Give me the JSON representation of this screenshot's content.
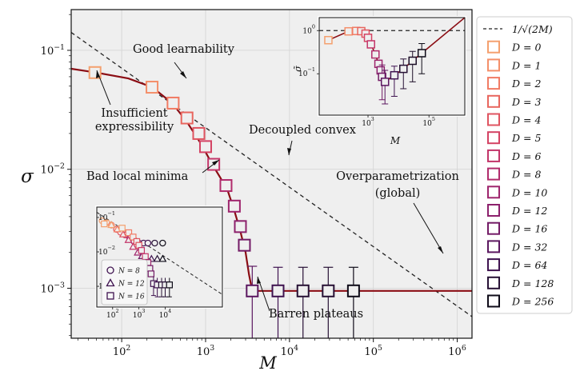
{
  "chart_data": [
    {
      "type": "scatter",
      "xlabel": "M",
      "ylabel": "σ",
      "xscale": "log",
      "yscale": "log",
      "xlim": [
        25,
        1500000
      ],
      "ylim": [
        0.00038,
        0.22
      ],
      "x_ticks": [
        {
          "v": 100,
          "label": "10^2"
        },
        {
          "v": 1000,
          "label": "10^3"
        },
        {
          "v": 10000,
          "label": "10^4"
        },
        {
          "v": 100000,
          "label": "10^5"
        },
        {
          "v": 1000000,
          "label": "10^6"
        }
      ],
      "y_ticks": [
        {
          "v": 0.001,
          "label": "10^-3"
        },
        {
          "v": 0.01,
          "label": "10^-2"
        },
        {
          "v": 0.1,
          "label": "10^-1"
        }
      ],
      "grid": true,
      "reference_line": {
        "name": "1/√(2M)",
        "style": "dashed",
        "color": "#222222"
      },
      "fit_curve": {
        "color": "#8b0d14",
        "points": [
          [
            25,
            0.07
          ],
          [
            50,
            0.065
          ],
          [
            120,
            0.058
          ],
          [
            230,
            0.049
          ],
          [
            400,
            0.036
          ],
          [
            600,
            0.025
          ],
          [
            900,
            0.016
          ],
          [
            1200,
            0.011
          ],
          [
            1500,
            0.0085
          ],
          [
            1850,
            0.0065
          ],
          [
            2200,
            0.0045
          ],
          [
            2600,
            0.003
          ],
          [
            3000,
            0.002
          ],
          [
            3300,
            0.0013
          ],
          [
            3600,
            0.00095
          ],
          [
            5000,
            0.00095
          ],
          [
            1500000,
            0.00095
          ]
        ]
      },
      "series": [
        {
          "name": "D=0",
          "color": "#f4a06e",
          "points": [
            {
              "M": 48,
              "sigma": 0.065
            }
          ]
        },
        {
          "name": "D=1",
          "color": "#f48f6a",
          "points": [
            {
              "M": 230,
              "sigma": 0.049
            }
          ]
        },
        {
          "name": "D=2",
          "color": "#f17b64",
          "points": [
            {
              "M": 410,
              "sigma": 0.036
            }
          ]
        },
        {
          "name": "D=3",
          "color": "#e8665e",
          "points": [
            {
              "M": 600,
              "sigma": 0.027
            }
          ]
        },
        {
          "name": "D=4",
          "color": "#df5460",
          "points": [
            {
              "M": 830,
              "sigma": 0.02
            }
          ]
        },
        {
          "name": "D=5",
          "color": "#d44263",
          "points": [
            {
              "M": 1000,
              "sigma": 0.0155
            }
          ]
        },
        {
          "name": "D=6",
          "color": "#c33569",
          "points": [
            {
              "M": 1250,
              "sigma": 0.011
            }
          ]
        },
        {
          "name": "D=8",
          "color": "#b12c6c",
          "points": [
            {
              "M": 1750,
              "sigma": 0.0073
            }
          ]
        },
        {
          "name": "D=10",
          "color": "#9e256d",
          "points": [
            {
              "M": 2200,
              "sigma": 0.0049
            }
          ]
        },
        {
          "name": "D=12",
          "color": "#8c206c",
          "points": [
            {
              "M": 2600,
              "sigma": 0.0033
            }
          ]
        },
        {
          "name": "D=16",
          "color": "#731b66",
          "points": [
            {
              "M": 2900,
              "sigma": 0.0023
            }
          ]
        },
        {
          "name": "D=32",
          "color": "#5b1760",
          "points": [
            {
              "M": 3600,
              "sigma": 0.00095,
              "err_lo": 0.00026,
              "err_hi": 0.00153
            }
          ]
        },
        {
          "name": "D=64",
          "color": "#3f1350",
          "points": [
            {
              "M": 7300,
              "sigma": 0.00095,
              "err_lo": 0.00032,
              "err_hi": 0.0015
            }
          ]
        },
        {
          "name": "D=128",
          "color": "#271135",
          "points": [
            {
              "M": 14500,
              "sigma": 0.00095,
              "err_lo": 0.00032,
              "err_hi": 0.0015
            },
            {
              "M": 29000,
              "sigma": 0.00095,
              "err_lo": 0.00032,
              "err_hi": 0.0015
            }
          ]
        },
        {
          "name": "D=256",
          "color": "#0e0b18",
          "points": [
            {
              "M": 58000,
              "sigma": 0.00095,
              "err_lo": 0.00032,
              "err_hi": 0.0015
            }
          ]
        }
      ],
      "legend": {
        "placement": "outside-right",
        "entries": [
          "1/√(2M)",
          "D=0",
          "D=1",
          "D=2",
          "D=3",
          "D=4",
          "D=5",
          "D=6",
          "D=8",
          "D=10",
          "D=12",
          "D=16",
          "D=32",
          "D=64",
          "D=128",
          "D=256"
        ]
      },
      "annotations": [
        "Good learnability",
        "Insufficient expressibility",
        "Decoupled convex",
        "Bad local minima",
        "Overparametrization (global)",
        "Barren plateaus"
      ]
    },
    {
      "type": "scatter",
      "name": "top-right inset",
      "xlabel": "M",
      "ylabel": "σ̃",
      "xscale": "log",
      "yscale": "log",
      "xlim": [
        25,
        1500000
      ],
      "ylim": [
        0.011,
        2
      ],
      "x_ticks": [
        {
          "v": 1000,
          "label": "10^3"
        },
        {
          "v": 100000,
          "label": "10^5"
        }
      ],
      "y_ticks": [
        {
          "v": 1,
          "label": "10^0"
        },
        {
          "v": 0.1,
          "label": "10^-1"
        }
      ],
      "reference_line": {
        "value": 1,
        "style": "dashed"
      },
      "points": [
        {
          "M": 50,
          "sigma": 0.6,
          "color": "#f4a06e"
        },
        {
          "M": 230,
          "sigma": 0.96,
          "color": "#f48f6a"
        },
        {
          "M": 410,
          "sigma": 0.98,
          "color": "#f17b64"
        },
        {
          "M": 600,
          "sigma": 0.97,
          "color": "#e8665e"
        },
        {
          "M": 830,
          "sigma": 0.85,
          "color": "#df5460"
        },
        {
          "M": 1000,
          "sigma": 0.68,
          "color": "#d44263"
        },
        {
          "M": 1250,
          "sigma": 0.48,
          "color": "#c33569"
        },
        {
          "M": 1750,
          "sigma": 0.28,
          "color": "#b12c6c"
        },
        {
          "M": 2200,
          "sigma": 0.17,
          "color": "#9e256d"
        },
        {
          "M": 2600,
          "sigma": 0.12,
          "color": "#8c206c"
        },
        {
          "M": 2900,
          "sigma": 0.085,
          "color": "#731b66",
          "err_lo": 0.025,
          "err_hi": 0.16
        },
        {
          "M": 3600,
          "sigma": 0.065,
          "color": "#5b1760",
          "err_lo": 0.02,
          "err_hi": 0.12
        },
        {
          "M": 7300,
          "sigma": 0.092,
          "color": "#3f1350",
          "err_lo": 0.03,
          "err_hi": 0.15
        },
        {
          "M": 14500,
          "sigma": 0.13,
          "color": "#271135",
          "err_lo": 0.045,
          "err_hi": 0.22
        },
        {
          "M": 29000,
          "sigma": 0.2,
          "color": "#1d0f28",
          "err_lo": 0.065,
          "err_hi": 0.33
        },
        {
          "M": 58000,
          "sigma": 0.3,
          "color": "#0e0b18",
          "err_lo": 0.1,
          "err_hi": 0.5
        }
      ]
    },
    {
      "type": "scatter",
      "name": "bottom-left inset",
      "xscale": "log",
      "yscale": "log",
      "xlim": [
        25,
        1500000
      ],
      "ylim": [
        0.00025,
        0.2
      ],
      "x_ticks": [
        {
          "v": 100,
          "label": "10^2"
        },
        {
          "v": 1000,
          "label": "10^3"
        },
        {
          "v": 10000,
          "label": "10^4"
        }
      ],
      "y_ticks": [
        {
          "v": 0.1,
          "label": "10^-1"
        },
        {
          "v": 0.01,
          "label": "10^-2"
        },
        {
          "v": 0.001,
          "label": "10^-3"
        }
      ],
      "legend_entries": [
        {
          "marker": "circle",
          "label": "N = 8"
        },
        {
          "marker": "triangle",
          "label": "N = 12"
        },
        {
          "marker": "square",
          "label": "N = 16"
        }
      ],
      "series": [
        {
          "name": "N = 8",
          "marker": "circle",
          "points": [
            [
              40,
              0.08
            ],
            [
              60,
              0.07
            ],
            [
              90,
              0.06
            ],
            [
              140,
              0.045
            ],
            [
              200,
              0.037
            ],
            [
              300,
              0.031
            ],
            [
              450,
              0.025
            ],
            [
              650,
              0.02
            ],
            [
              1000,
              0.018
            ],
            [
              1500,
              0.018
            ],
            [
              2200,
              0.018
            ],
            [
              4000,
              0.018
            ],
            [
              8000,
              0.018
            ]
          ]
        },
        {
          "name": "N = 12",
          "marker": "triangle",
          "points": [
            [
              50,
              0.07
            ],
            [
              90,
              0.06
            ],
            [
              150,
              0.045
            ],
            [
              250,
              0.032
            ],
            [
              400,
              0.022
            ],
            [
              600,
              0.014
            ],
            [
              900,
              0.0095
            ],
            [
              1300,
              0.0075
            ],
            [
              2000,
              0.0062
            ],
            [
              3000,
              0.0062
            ],
            [
              5000,
              0.0062
            ],
            [
              8000,
              0.0062
            ]
          ]
        },
        {
          "name": "N = 16",
          "marker": "square",
          "points": [
            [
              48,
              0.065
            ],
            [
              230,
              0.049
            ],
            [
              410,
              0.036
            ],
            [
              600,
              0.027
            ],
            [
              830,
              0.02
            ],
            [
              1000,
              0.0155
            ],
            [
              1250,
              0.011
            ],
            [
              1750,
              0.0073
            ],
            [
              2200,
              0.0049
            ],
            [
              2600,
              0.0033
            ],
            [
              2900,
              0.0023
            ],
            [
              3600,
              0.0012
            ],
            [
              5000,
              0.0011
            ],
            [
              7300,
              0.0011
            ],
            [
              10000,
              0.0011
            ],
            [
              14500,
              0.0011
            ]
          ]
        }
      ]
    }
  ]
}
